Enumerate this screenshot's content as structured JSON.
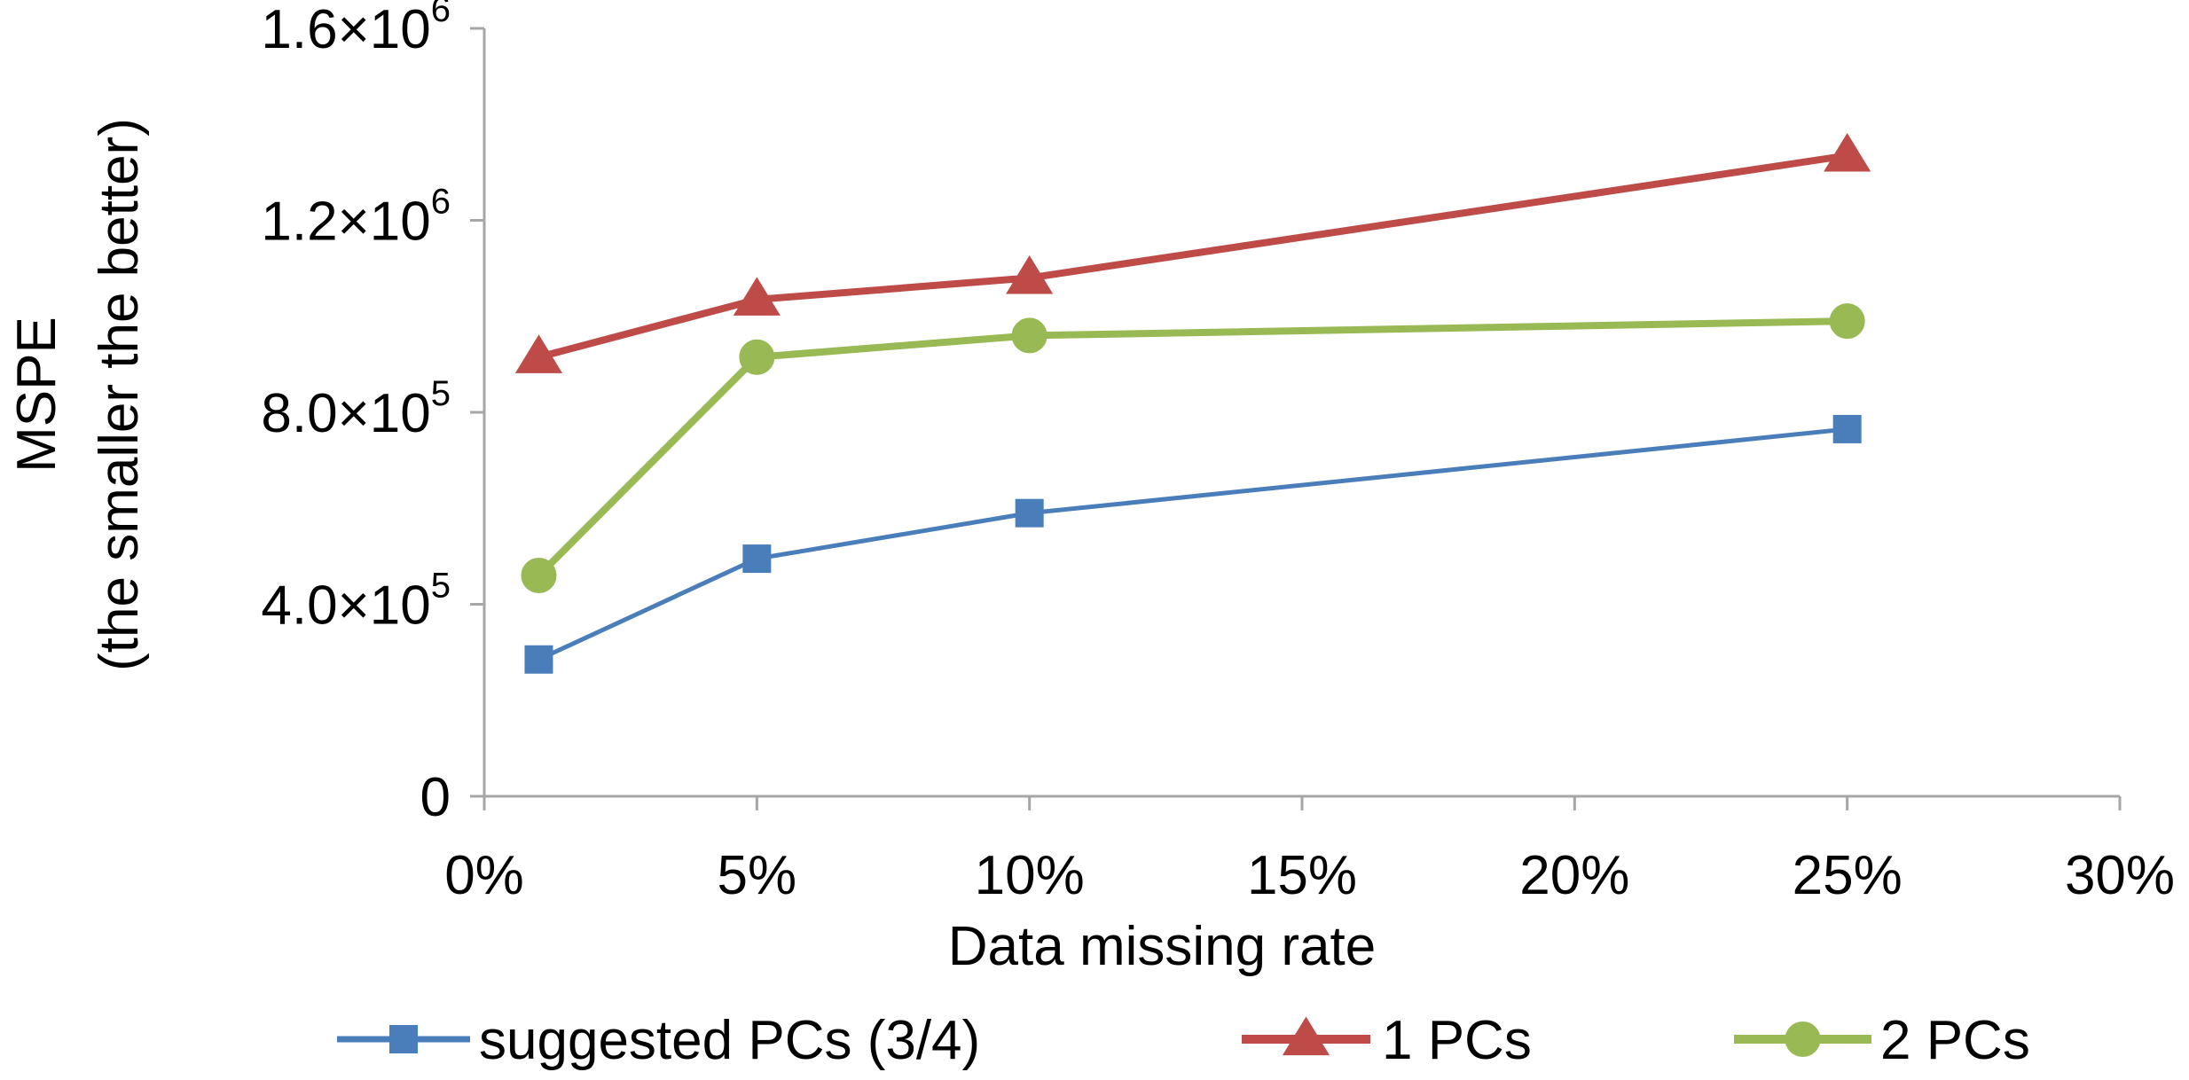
{
  "chart_data": {
    "type": "line",
    "title": "",
    "xlabel": "Data missing  rate",
    "ylabel": "MSPE",
    "ylabel_sub": "(the  smaller  the  better)",
    "x": [
      1,
      5,
      10,
      25
    ],
    "xlim": [
      0,
      30
    ],
    "x_ticks": [
      0,
      5,
      10,
      15,
      20,
      25,
      30
    ],
    "x_tick_labels": [
      "0%",
      "5%",
      "10%",
      "15%",
      "20%",
      "25%",
      "30%"
    ],
    "ylim": [
      0,
      1600000
    ],
    "y_ticks": [
      {
        "value": 0,
        "mantissa": "0",
        "times": "",
        "base": "",
        "exp": ""
      },
      {
        "value": 400000,
        "mantissa": "4.0",
        "times": "×",
        "base": "10",
        "exp": "5"
      },
      {
        "value": 800000,
        "mantissa": "8.0",
        "times": "×",
        "base": "10",
        "exp": "5"
      },
      {
        "value": 1200000,
        "mantissa": "1.2",
        "times": "×",
        "base": "10",
        "exp": "6"
      },
      {
        "value": 1600000,
        "mantissa": "1.6",
        "times": "×",
        "base": "10",
        "exp": "6"
      }
    ],
    "grid": false,
    "legend_position": "bottom",
    "series": [
      {
        "name": "suggested PCs (3/4)",
        "color": "#4a7ebb",
        "marker": "square",
        "values": [
          285000,
          495000,
          590000,
          765000
        ]
      },
      {
        "name": "1 PCs",
        "color": "#be4b48",
        "marker": "triangle",
        "values": [
          915000,
          1035000,
          1080000,
          1335000
        ]
      },
      {
        "name": "2 PCs",
        "color": "#98b954",
        "marker": "circle",
        "values": [
          460000,
          915000,
          960000,
          990000
        ]
      }
    ]
  }
}
